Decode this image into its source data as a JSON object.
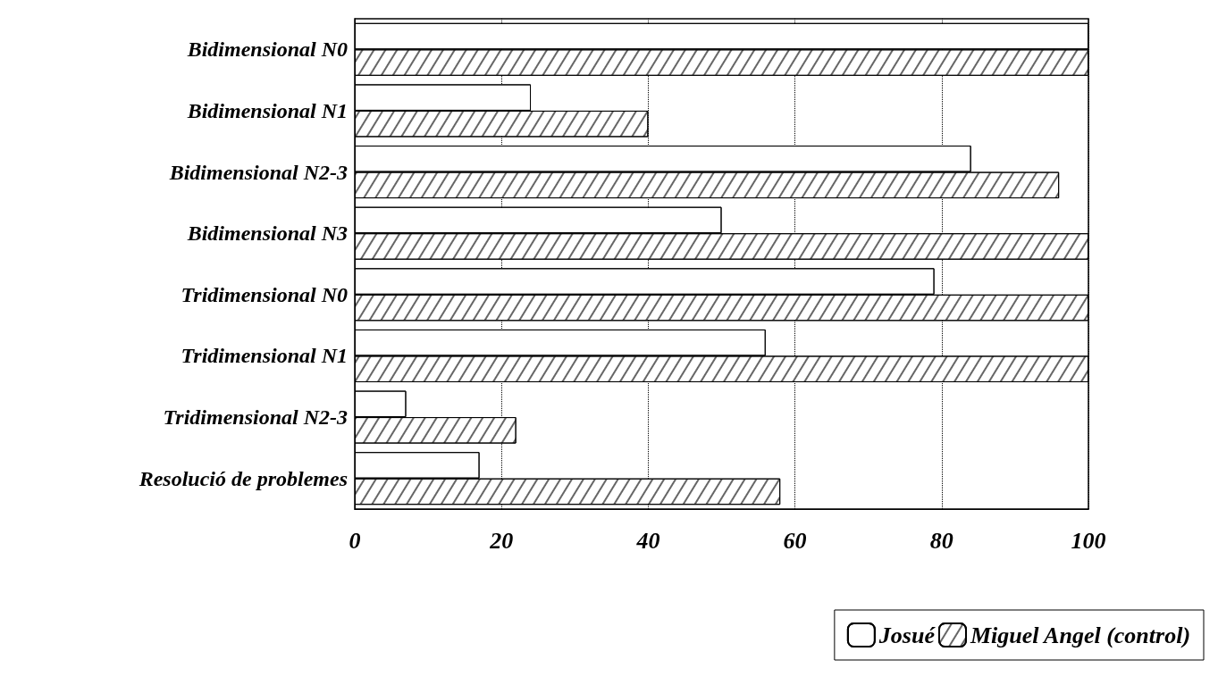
{
  "chart_data": {
    "type": "bar",
    "orientation": "horizontal",
    "categories": [
      "Bidimensional N0",
      "Bidimensional N1",
      "Bidimensional N2-3",
      "Bidimensional N3",
      "Tridimensional N0",
      "Tridimensional N1",
      "Tridimensional N2-3",
      "Resolució de problemes"
    ],
    "series": [
      {
        "name": "Josué",
        "color": "#ffffff",
        "values": [
          100,
          24,
          84,
          50,
          79,
          56,
          7,
          17
        ]
      },
      {
        "name": "Miguel Angel (control)",
        "color": "#ffffff",
        "values": [
          100,
          40,
          96,
          100,
          100,
          100,
          22,
          58
        ]
      }
    ],
    "xlim": [
      0,
      100
    ],
    "xticks": [
      0,
      20,
      40,
      60,
      80,
      100
    ],
    "grid": "x",
    "legend": "bottom right"
  }
}
